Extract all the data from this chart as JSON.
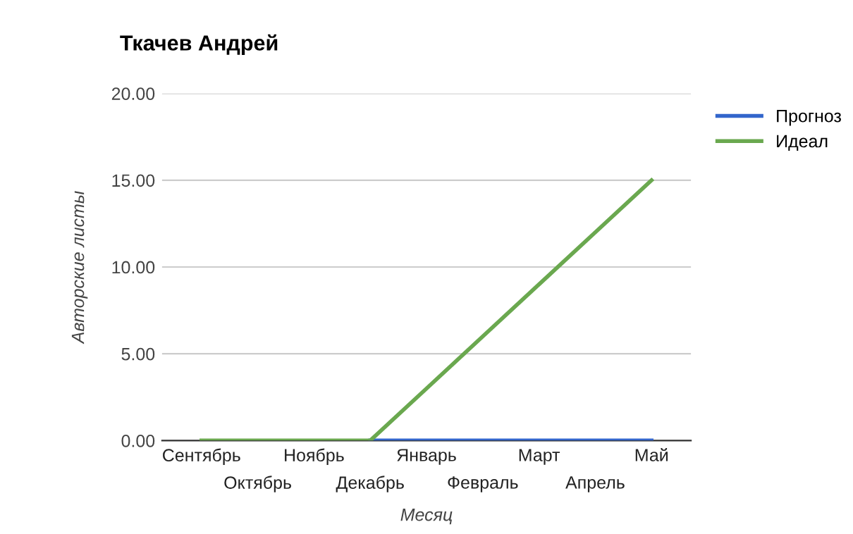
{
  "chart_data": {
    "type": "line",
    "title": "Ткачев Андрей",
    "xlabel": "Месяц",
    "ylabel": "Авторские листы",
    "categories": [
      "Сентябрь",
      "Октябрь",
      "Ноябрь",
      "Декабрь",
      "Январь",
      "Февраль",
      "Март",
      "Апрель",
      "Май"
    ],
    "series": [
      {
        "name": "Прогноз",
        "color": "#3366cc",
        "values": [
          null,
          null,
          null,
          0,
          0,
          0,
          0,
          0,
          0
        ]
      },
      {
        "name": "Идеал",
        "color": "#6aa84f",
        "values": [
          0,
          0,
          0,
          0,
          3,
          6,
          9,
          12,
          15
        ]
      }
    ],
    "ylim": [
      0,
      20
    ],
    "yticks": [
      {
        "value": 0,
        "label": "0.00"
      },
      {
        "value": 5,
        "label": "5.00"
      },
      {
        "value": 10,
        "label": "10.00"
      },
      {
        "value": 15,
        "label": "15.00"
      },
      {
        "value": 20,
        "label": "20.00"
      }
    ],
    "grid": "y",
    "legend": "right",
    "marker": "none",
    "line_style": "solid"
  }
}
